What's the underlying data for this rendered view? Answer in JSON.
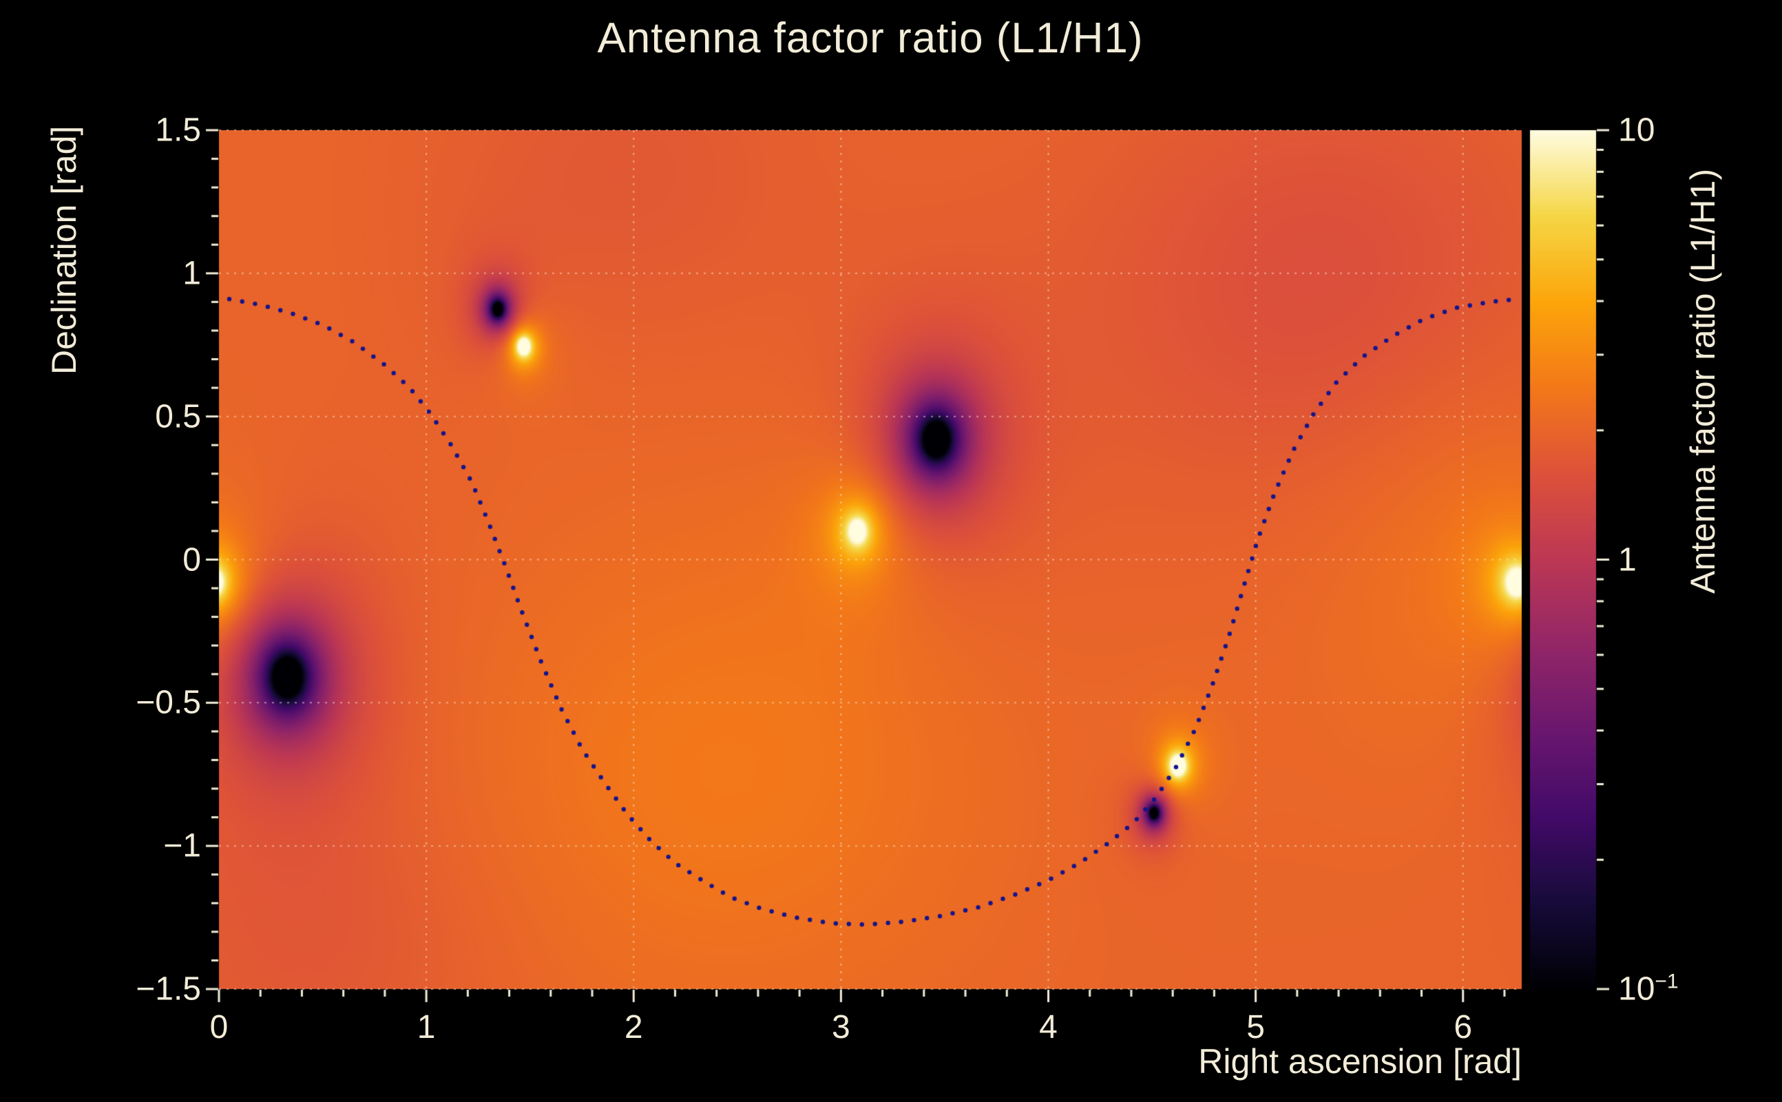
{
  "colors": {
    "background": "#000000",
    "text": "#f2ecd8",
    "tick": "#f2ecd8",
    "grid": "rgba(255,243,221,0.5)",
    "curve": "#14148c"
  },
  "chart_data": {
    "type": "heatmap",
    "title": "Antenna factor ratio (L1/H1)",
    "xlabel": "Right ascension [rad]",
    "ylabel": "Declination [rad]",
    "zlabel": "Antenna factor ratio (L1/H1)",
    "xlim": [
      0,
      6.2832
    ],
    "ylim": [
      -1.5,
      1.5
    ],
    "grid": "dotted",
    "x_ticks": [
      {
        "v": 0,
        "label": "0"
      },
      {
        "v": 1,
        "label": "1"
      },
      {
        "v": 2,
        "label": "2"
      },
      {
        "v": 3,
        "label": "3"
      },
      {
        "v": 4,
        "label": "4"
      },
      {
        "v": 5,
        "label": "5"
      },
      {
        "v": 6,
        "label": "6"
      }
    ],
    "x_minor_step": 0.2,
    "y_ticks": [
      {
        "v": 1.5,
        "label": "1.5"
      },
      {
        "v": 1,
        "label": "1"
      },
      {
        "v": 0.5,
        "label": "0.5"
      },
      {
        "v": 0,
        "label": "0"
      },
      {
        "v": -0.5,
        "label": "−0.5"
      },
      {
        "v": -1,
        "label": "−1"
      },
      {
        "v": -1.5,
        "label": "−1.5"
      }
    ],
    "y_minor_step": 0.1,
    "colorbar": {
      "scale": "log",
      "min": 0.1,
      "max": 10,
      "ticks": [
        {
          "v": 10,
          "text": "10",
          "sup": ""
        },
        {
          "v": 1,
          "text": "1",
          "sup": ""
        },
        {
          "v": 0.1,
          "text": "10",
          "sup": "−1"
        }
      ]
    },
    "colormap": {
      "name": "inferno-like",
      "anchors": [
        [
          0.0,
          "#000004"
        ],
        [
          0.1,
          "#160b39"
        ],
        [
          0.2,
          "#420a68"
        ],
        [
          0.3,
          "#6a176e"
        ],
        [
          0.4,
          "#932667"
        ],
        [
          0.5,
          "#bc3754"
        ],
        [
          0.6,
          "#dd513a"
        ],
        [
          0.7,
          "#f37819"
        ],
        [
          0.8,
          "#fca50a"
        ],
        [
          0.9,
          "#f5d645"
        ],
        [
          1.0,
          "#fffce0"
        ]
      ]
    },
    "field": {
      "units": "log10(ratio)",
      "base": 0.3,
      "background_blobs": [
        {
          "ra": 2.4,
          "dec": -0.75,
          "sx": 1.3,
          "sy": 0.85,
          "a": 0.1
        },
        {
          "ra": 5.35,
          "dec": 0.95,
          "sx": 1.1,
          "sy": 0.75,
          "a": -0.12
        },
        {
          "ra": 1.95,
          "dec": 1.35,
          "sx": 0.9,
          "sy": 0.6,
          "a": -0.06
        },
        {
          "ra": 0.5,
          "dec": -1.35,
          "sx": 0.9,
          "sy": 0.55,
          "a": -0.06
        },
        {
          "ra": 6.0,
          "dec": -0.05,
          "sx": 0.8,
          "sy": 0.8,
          "a": 0.07
        }
      ],
      "maxima": [
        {
          "ra": 3.08,
          "dec": 0.1,
          "r": 0.18,
          "a": 0.55,
          "p": 2.0
        },
        {
          "ra": 6.26,
          "dec": -0.08,
          "r": 0.2,
          "a": 0.58,
          "p": 2.0
        },
        {
          "ra": 1.47,
          "dec": 0.745,
          "r": 0.1,
          "a": 0.6,
          "p": 2.4
        },
        {
          "ra": 4.625,
          "dec": -0.72,
          "r": 0.11,
          "a": 0.6,
          "p": 2.4
        }
      ],
      "minima": [
        {
          "ra": 0.33,
          "dec": -0.41,
          "r": 0.32,
          "a": 0.8,
          "p": 2.5
        },
        {
          "ra": 3.46,
          "dec": 0.42,
          "r": 0.28,
          "a": 0.8,
          "p": 2.5
        },
        {
          "ra": 1.345,
          "dec": 0.875,
          "r": 0.12,
          "a": 0.7,
          "p": 2.6
        },
        {
          "ra": 4.51,
          "dec": -0.885,
          "r": 0.1,
          "a": 0.7,
          "p": 2.6
        }
      ]
    },
    "overlay_curve": {
      "marker": "dot",
      "color": "#14148c",
      "points": [
        [
          0.05,
          0.91
        ],
        [
          0.2,
          0.89
        ],
        [
          0.35,
          0.86
        ],
        [
          0.5,
          0.82
        ],
        [
          0.65,
          0.76
        ],
        [
          0.8,
          0.68
        ],
        [
          0.92,
          0.6
        ],
        [
          1.02,
          0.51
        ],
        [
          1.12,
          0.4
        ],
        [
          1.22,
          0.27
        ],
        [
          1.3,
          0.13
        ],
        [
          1.38,
          -0.02
        ],
        [
          1.46,
          -0.18
        ],
        [
          1.55,
          -0.35
        ],
        [
          1.65,
          -0.52
        ],
        [
          1.75,
          -0.66
        ],
        [
          1.86,
          -0.78
        ],
        [
          1.97,
          -0.89
        ],
        [
          2.08,
          -0.98
        ],
        [
          2.2,
          -1.06
        ],
        [
          2.33,
          -1.12
        ],
        [
          2.47,
          -1.18
        ],
        [
          2.62,
          -1.22
        ],
        [
          2.78,
          -1.25
        ],
        [
          2.95,
          -1.27
        ],
        [
          3.12,
          -1.275
        ],
        [
          3.3,
          -1.265
        ],
        [
          3.48,
          -1.245
        ],
        [
          3.66,
          -1.215
        ],
        [
          3.84,
          -1.17
        ],
        [
          4.0,
          -1.12
        ],
        [
          4.15,
          -1.06
        ],
        [
          4.29,
          -0.99
        ],
        [
          4.41,
          -0.92
        ],
        [
          4.52,
          -0.83
        ],
        [
          4.62,
          -0.72
        ],
        [
          4.71,
          -0.59
        ],
        [
          4.79,
          -0.44
        ],
        [
          4.87,
          -0.27
        ],
        [
          4.94,
          -0.1
        ],
        [
          5.01,
          0.07
        ],
        [
          5.09,
          0.23
        ],
        [
          5.18,
          0.38
        ],
        [
          5.28,
          0.51
        ],
        [
          5.39,
          0.62
        ],
        [
          5.52,
          0.71
        ],
        [
          5.66,
          0.78
        ],
        [
          5.81,
          0.84
        ],
        [
          5.97,
          0.88
        ],
        [
          6.13,
          0.9
        ],
        [
          6.26,
          0.91
        ]
      ]
    }
  }
}
